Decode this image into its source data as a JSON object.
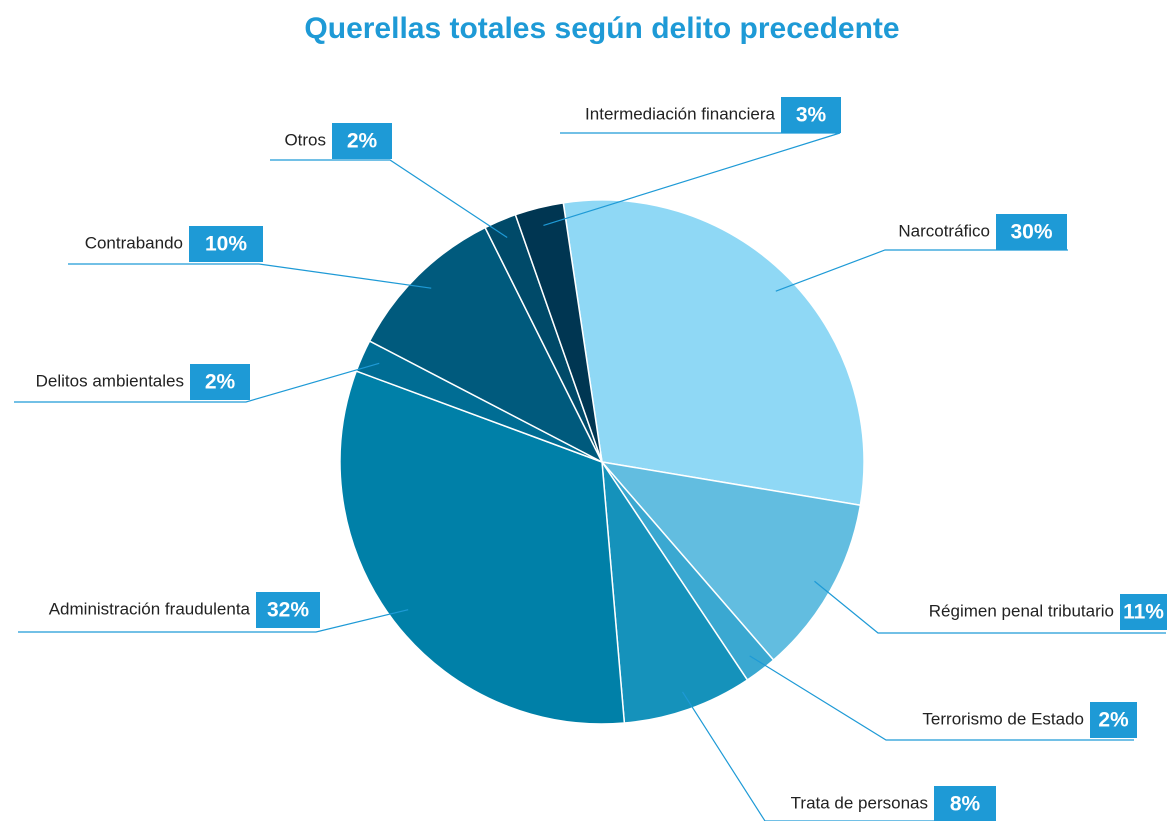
{
  "chart_data": {
    "type": "pie",
    "title": "Querellas totales según delito precedente",
    "categories": [
      "Narcotráfico",
      "Régimen penal tributario",
      "Terrorismo de Estado",
      "Trata de personas",
      "Administración fraudulenta",
      "Delitos ambientales",
      "Contrabando",
      "Otros",
      "Intermediación financiera"
    ],
    "values": [
      30,
      11,
      2,
      8,
      32,
      2,
      10,
      2,
      3
    ],
    "value_labels": [
      "30%",
      "11%",
      "2%",
      "8%",
      "32%",
      "2%",
      "10%",
      "2%",
      "3%"
    ],
    "colors": [
      "#8fd8f5",
      "#62bde0",
      "#3aa8d1",
      "#1592bb",
      "#0080a8",
      "#006d94",
      "#005a7d",
      "#004a69",
      "#003652"
    ],
    "label_color": "#1e9ad6"
  }
}
